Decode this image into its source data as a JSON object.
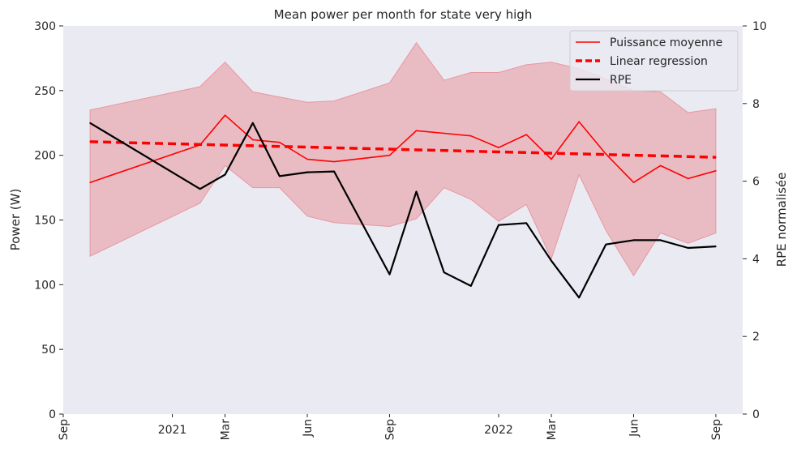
{
  "chart_data": {
    "type": "line",
    "title": "Mean power per month for state very high",
    "ylabel": "Power (W)",
    "y2label": "RPE normalisée",
    "ylim": [
      0,
      300
    ],
    "y2lim": [
      0,
      10
    ],
    "yticks": [
      0,
      50,
      100,
      150,
      200,
      250,
      300
    ],
    "y2ticks": [
      0,
      2,
      4,
      6,
      8,
      10
    ],
    "xlim": [
      "2020-09-01",
      "2022-10-01"
    ],
    "xticks": [
      {
        "date": "2020-09-01",
        "label": "Sep",
        "rotated": true
      },
      {
        "date": "2021-01-01",
        "label": "2021",
        "rotated": false
      },
      {
        "date": "2021-03-01",
        "label": "Mar",
        "rotated": true
      },
      {
        "date": "2021-06-01",
        "label": "Jun",
        "rotated": true
      },
      {
        "date": "2021-09-01",
        "label": "Sep",
        "rotated": true
      },
      {
        "date": "2022-01-01",
        "label": "2022",
        "rotated": false
      },
      {
        "date": "2022-03-01",
        "label": "Mar",
        "rotated": true
      },
      {
        "date": "2022-06-01",
        "label": "Jun",
        "rotated": true
      },
      {
        "date": "2022-09-01",
        "label": "Sep",
        "rotated": true
      }
    ],
    "grid": false,
    "legend_position": "top-right",
    "colors": {
      "power": "#ff0000",
      "band": "#e8969f",
      "regression": "#ff0000",
      "rpe": "#000000",
      "background": "#eaeaf2"
    },
    "series": [
      {
        "name": "Puissance moyenne",
        "axis": "left",
        "style": "solid",
        "x": [
          "2020-10-01",
          "2021-02-01",
          "2021-03-01",
          "2021-04-01",
          "2021-05-01",
          "2021-06-01",
          "2021-07-01",
          "2021-09-01",
          "2021-10-01",
          "2021-11-01",
          "2021-12-01",
          "2022-01-01",
          "2022-02-01",
          "2022-03-01",
          "2022-04-01",
          "2022-05-01",
          "2022-06-01",
          "2022-07-01",
          "2022-08-01",
          "2022-09-01"
        ],
        "values": [
          179,
          208,
          231,
          212,
          210,
          197,
          195,
          200,
          219,
          217,
          215,
          206,
          216,
          197,
          226,
          201,
          179,
          192,
          182,
          188
        ],
        "band_upper": [
          235,
          253,
          272,
          249,
          245,
          241,
          242,
          256,
          287,
          258,
          264,
          264,
          270,
          272,
          267,
          259,
          250,
          249,
          233,
          236
        ],
        "band_lower": [
          122,
          163,
          192,
          175,
          175,
          153,
          148,
          145,
          151,
          175,
          166,
          149,
          162,
          120,
          185,
          142,
          107,
          140,
          132,
          140
        ]
      },
      {
        "name": "Linear regression",
        "axis": "left",
        "style": "dashed",
        "x": [
          "2020-10-01",
          "2022-09-01"
        ],
        "values": [
          210.5,
          198.5
        ]
      },
      {
        "name": "RPE",
        "axis": "right",
        "style": "solid",
        "x": [
          "2020-10-01",
          "2021-02-01",
          "2021-03-01",
          "2021-04-01",
          "2021-05-01",
          "2021-06-01",
          "2021-07-01",
          "2021-09-01",
          "2021-10-01",
          "2021-11-01",
          "2021-12-01",
          "2022-01-01",
          "2022-02-01",
          "2022-03-01",
          "2022-04-01",
          "2022-05-01",
          "2022-06-01",
          "2022-07-01",
          "2022-08-01",
          "2022-09-01"
        ],
        "values": [
          7.5,
          5.8,
          6.17,
          7.5,
          6.13,
          6.23,
          6.25,
          3.6,
          5.73,
          3.65,
          3.3,
          4.87,
          4.92,
          3.95,
          3.0,
          4.37,
          4.48,
          4.48,
          4.28,
          4.32
        ]
      }
    ]
  }
}
